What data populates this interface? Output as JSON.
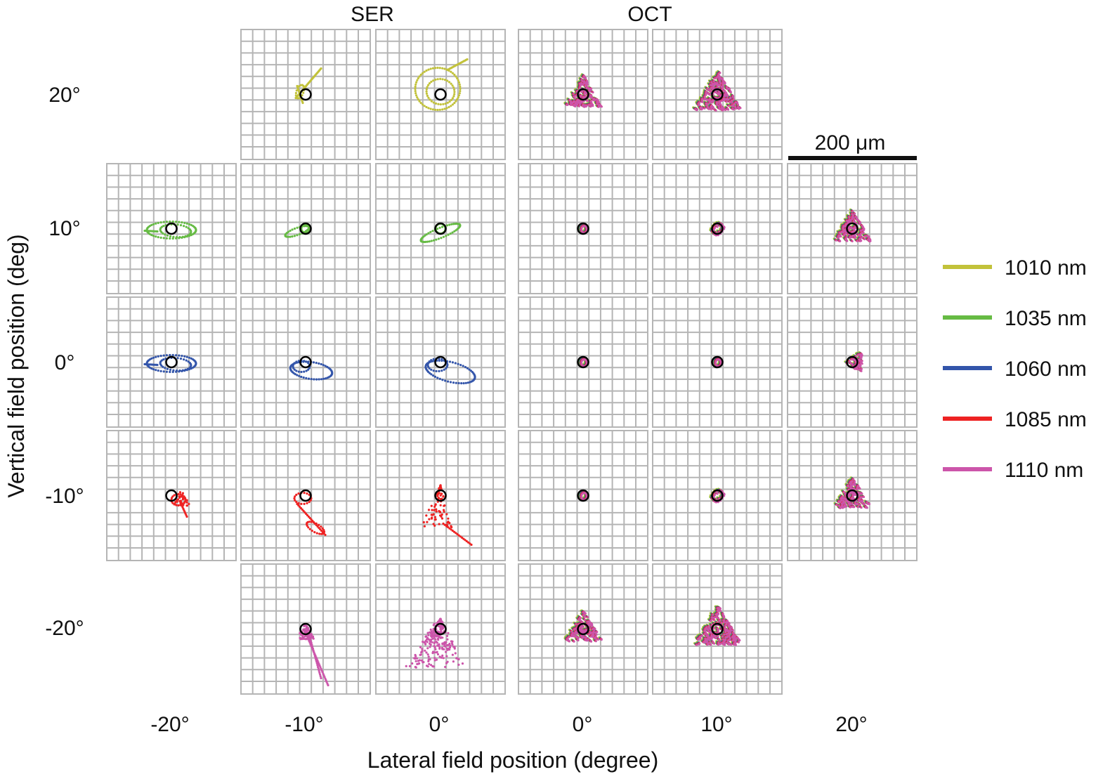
{
  "chart_data": {
    "type": "scatter",
    "title": "",
    "xlabel": "Lateral field position (degree)",
    "ylabel": "Vertical field position (deg)",
    "group_labels": [
      "SER",
      "OCT"
    ],
    "x_tick_labels": [
      "-20°",
      "-10°",
      "0°",
      "0°",
      "10°",
      "20°"
    ],
    "y_tick_labels": [
      "20°",
      "10°",
      "0°",
      "-10°",
      "-20°"
    ],
    "scale_bar_label": "200 μm",
    "legend": [
      {
        "name": "1010 nm",
        "color": "#c2c23a"
      },
      {
        "name": "1035 nm",
        "color": "#66bb44"
      },
      {
        "name": "1060 nm",
        "color": "#3355aa"
      },
      {
        "name": "1085 nm",
        "color": "#ee2222"
      },
      {
        "name": "1110 nm",
        "color": "#cc55aa"
      }
    ],
    "panels": [
      {
        "method": "SER",
        "lateral": "-10°",
        "vertical": "20°",
        "series": "1010 nm",
        "spot": "skewed-line"
      },
      {
        "method": "SER",
        "lateral": "0°",
        "vertical": "20°",
        "series": "1010 nm",
        "spot": "loop-large"
      },
      {
        "method": "OCT",
        "lateral": "0°",
        "vertical": "20°",
        "series": "all",
        "spot": "triangle-medium"
      },
      {
        "method": "OCT",
        "lateral": "10°",
        "vertical": "20°",
        "series": "all",
        "spot": "triangle-large"
      },
      {
        "method": "SER",
        "lateral": "-20°",
        "vertical": "10°",
        "series": "1035 nm",
        "spot": "ellipse-wide"
      },
      {
        "method": "SER",
        "lateral": "-10°",
        "vertical": "10°",
        "series": "1035 nm",
        "spot": "ellipse-tilted-small"
      },
      {
        "method": "SER",
        "lateral": "0°",
        "vertical": "10°",
        "series": "1035 nm",
        "spot": "ellipse-tilted"
      },
      {
        "method": "OCT",
        "lateral": "0°",
        "vertical": "10°",
        "series": "all",
        "spot": "tiny"
      },
      {
        "method": "OCT",
        "lateral": "10°",
        "vertical": "10°",
        "series": "all",
        "spot": "small-star"
      },
      {
        "method": "OCT",
        "lateral": "20°",
        "vertical": "10°",
        "series": "all",
        "spot": "triangle-medium"
      },
      {
        "method": "SER",
        "lateral": "-20°",
        "vertical": "0°",
        "series": "1060 nm",
        "spot": "ellipse-wide"
      },
      {
        "method": "SER",
        "lateral": "-10°",
        "vertical": "0°",
        "series": "1060 nm",
        "spot": "loop-lower-right"
      },
      {
        "method": "SER",
        "lateral": "0°",
        "vertical": "0°",
        "series": "1060 nm",
        "spot": "loop-lower-right-large"
      },
      {
        "method": "OCT",
        "lateral": "0°",
        "vertical": "0°",
        "series": "all",
        "spot": "tiny"
      },
      {
        "method": "OCT",
        "lateral": "10°",
        "vertical": "0°",
        "series": "all",
        "spot": "tiny"
      },
      {
        "method": "OCT",
        "lateral": "20°",
        "vertical": "0°",
        "series": "all",
        "spot": "arrow-right"
      },
      {
        "method": "SER",
        "lateral": "-20°",
        "vertical": "-10°",
        "series": "1085 nm",
        "spot": "tail-right"
      },
      {
        "method": "SER",
        "lateral": "-10°",
        "vertical": "-10°",
        "series": "1085 nm",
        "spot": "loop-down"
      },
      {
        "method": "SER",
        "lateral": "0°",
        "vertical": "-10°",
        "series": "1085 nm",
        "spot": "fan-down"
      },
      {
        "method": "OCT",
        "lateral": "0°",
        "vertical": "-10°",
        "series": "all",
        "spot": "tiny"
      },
      {
        "method": "OCT",
        "lateral": "10°",
        "vertical": "-10°",
        "series": "all",
        "spot": "small-star"
      },
      {
        "method": "OCT",
        "lateral": "20°",
        "vertical": "-10°",
        "series": "all",
        "spot": "triangle-medium"
      },
      {
        "method": "SER",
        "lateral": "-10°",
        "vertical": "-20°",
        "series": "1110 nm",
        "spot": "tail-down"
      },
      {
        "method": "SER",
        "lateral": "0°",
        "vertical": "-20°",
        "series": "1110 nm",
        "spot": "fan-large"
      },
      {
        "method": "OCT",
        "lateral": "0°",
        "vertical": "-20°",
        "series": "all",
        "spot": "triangle-medium"
      },
      {
        "method": "OCT",
        "lateral": "10°",
        "vertical": "-20°",
        "series": "all",
        "spot": "triangle-large"
      }
    ],
    "grid": true
  }
}
